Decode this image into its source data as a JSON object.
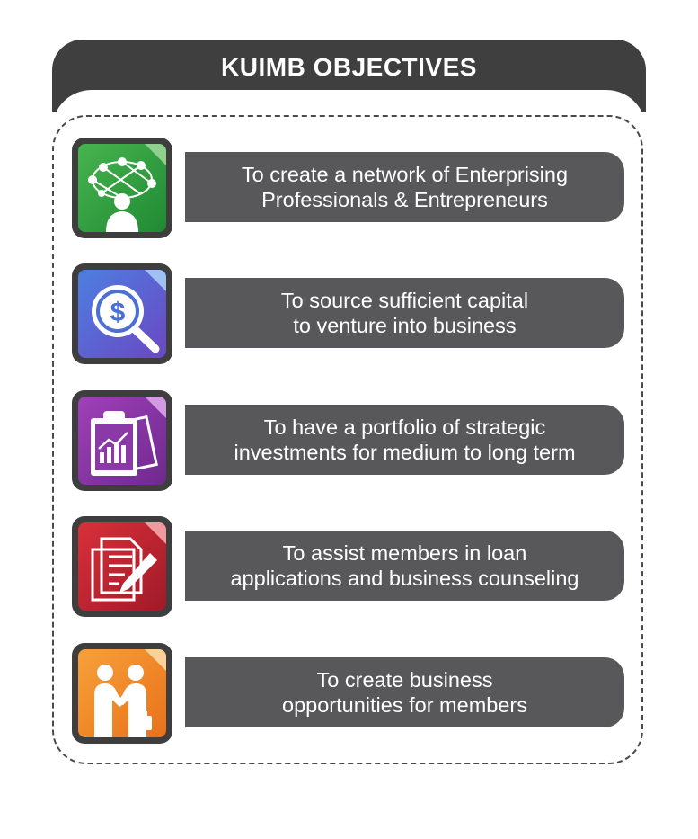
{
  "header": {
    "title": "KUIMB OBJECTIVES"
  },
  "objectives": [
    {
      "line1": "To create a network of Enterprising",
      "line2": "Professionals & Entrepreneurs",
      "icon": "network-person-icon",
      "color": "#2e9a3c"
    },
    {
      "line1": "To source sufficient capital",
      "line2": "to venture into business",
      "icon": "dollar-magnifier-icon",
      "color": "#5a5fd0"
    },
    {
      "line1": "To have a portfolio of strategic",
      "line2": "investments for medium to long term",
      "icon": "clipboard-chart-icon",
      "color": "#8a3aa6"
    },
    {
      "line1": "To assist members in loan",
      "line2": "applications and business counseling",
      "icon": "document-pen-icon",
      "color": "#c2232e"
    },
    {
      "line1": "To create business",
      "line2": "opportunities for members",
      "icon": "handshake-icon",
      "color": "#f08a22"
    }
  ]
}
